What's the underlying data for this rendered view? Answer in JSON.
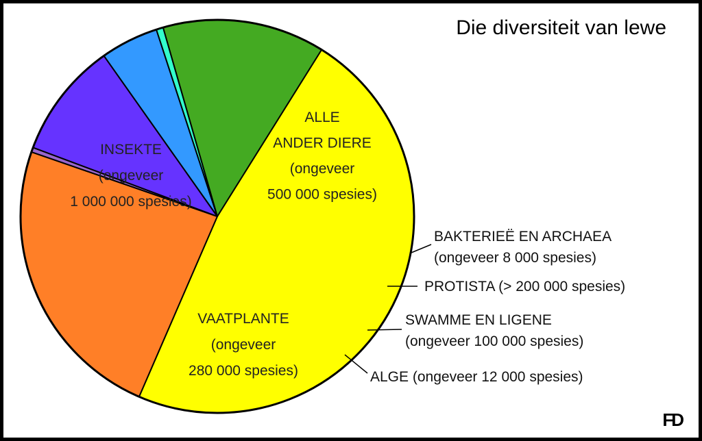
{
  "chart_data": {
    "type": "pie",
    "title": "Die diversiteit van lewe",
    "signature": "FD",
    "slices": [
      {
        "key": "insekte",
        "value": 1000000,
        "color": "#ffff00",
        "lines": [
          "INSEKTE",
          "(ongeveer",
          "1 000 000 spesies)"
        ]
      },
      {
        "key": "ander-diere",
        "value": 500000,
        "color": "#ff7f27",
        "lines": [
          "ALLE",
          "ANDER DIERE",
          "(ongeveer",
          "500 000 spesies)"
        ]
      },
      {
        "key": "bakteriee",
        "value": 8000,
        "color": "#9966cc",
        "lines": [
          "BAKTERIEË EN ARCHAEA",
          "(ongeveer 8 000 spesies)"
        ]
      },
      {
        "key": "protista",
        "value": 200000,
        "color": "#6633ff",
        "lines": [
          "PROTISTA (> 200 000 spesies)"
        ]
      },
      {
        "key": "swamme",
        "value": 100000,
        "color": "#3399ff",
        "lines": [
          "SWAMME EN LIGENE",
          "(ongeveer 100 000 spesies)"
        ]
      },
      {
        "key": "alge",
        "value": 12000,
        "color": "#33ffcc",
        "lines": [
          "ALGE (ongeveer 12 000 spesies)"
        ]
      },
      {
        "key": "vaatplante",
        "value": 280000,
        "color": "#44aa22",
        "lines": [
          "VAATPLANTE",
          "(ongeveer",
          "280 000 spesies)"
        ]
      }
    ]
  }
}
